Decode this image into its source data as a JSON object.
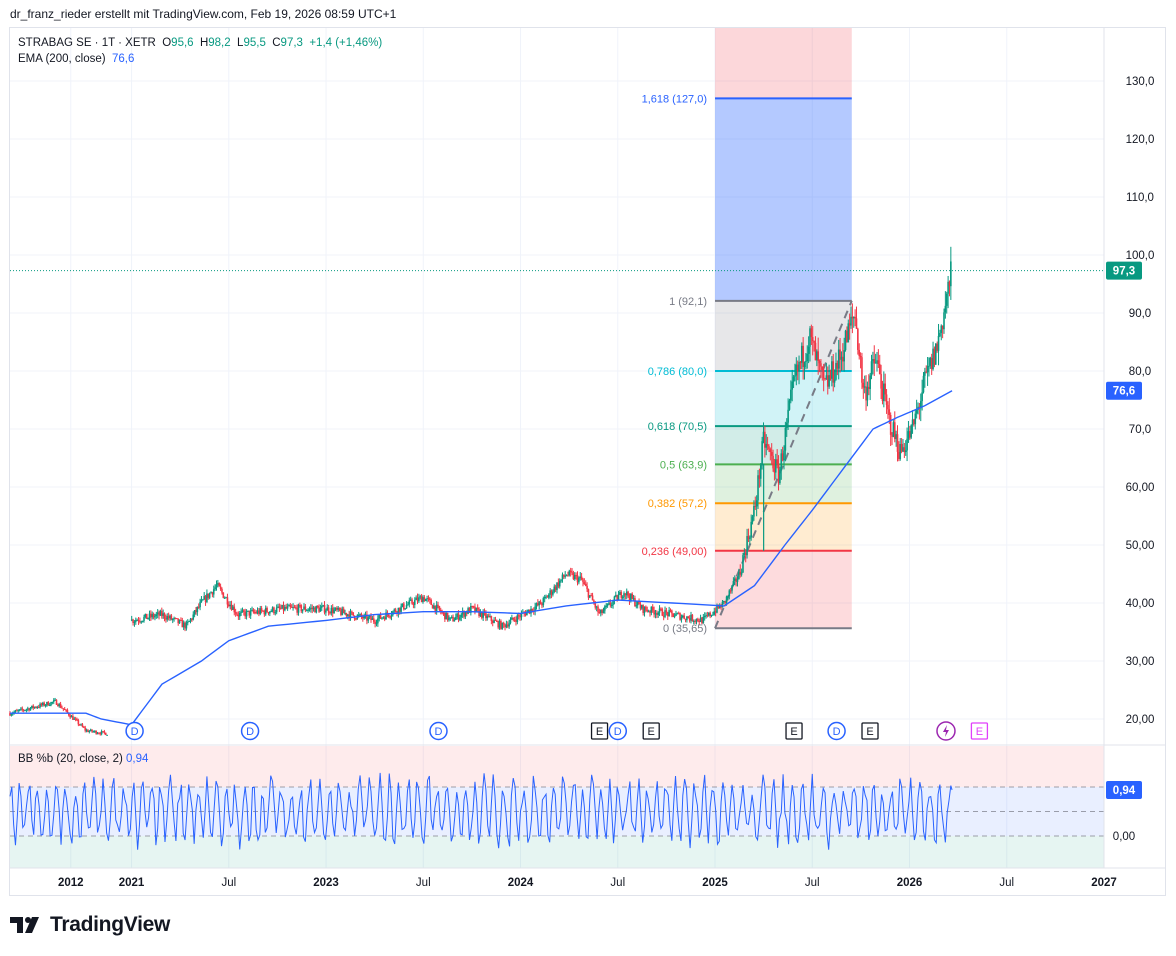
{
  "header": {
    "attribution": "dr_franz_rieder erstellt mit TradingView.com, Feb 19, 2026 08:59 UTC+1"
  },
  "legend": {
    "symbol": "STRABAG SE · 1T · XETR",
    "o_label": "O",
    "o_value": "95,6",
    "h_label": "H",
    "h_value": "98,2",
    "l_label": "L",
    "l_value": "95,5",
    "c_label": "C",
    "c_value": "97,3",
    "change": "+1,4 (+1,46%)",
    "ema_label": "EMA (200, close)",
    "ema_value": "76,6"
  },
  "indicator": {
    "label": "BB %b (20, close, 2)",
    "value": "0,94",
    "axis_label": "0,00"
  },
  "footer": {
    "brand": "TradingView"
  },
  "colors": {
    "up": "#089981",
    "down": "#f23645",
    "ema": "#2962ff",
    "accent": "#2962ff"
  },
  "chart_data": {
    "type": "candlestick",
    "symbol": "STRABAG SE",
    "interval": "1T",
    "exchange": "XETR",
    "price_axis": {
      "range": [
        15,
        140
      ],
      "ticks": [
        {
          "v": 20,
          "label": "20,00"
        },
        {
          "v": 30,
          "label": "30,00"
        },
        {
          "v": 40,
          "label": "40,00"
        },
        {
          "v": 50,
          "label": "50,00"
        },
        {
          "v": 60,
          "label": "60,00"
        },
        {
          "v": 70,
          "label": "70,0"
        },
        {
          "v": 80,
          "label": "80,0"
        },
        {
          "v": 90,
          "label": "90,0"
        },
        {
          "v": 100,
          "label": "100,0"
        },
        {
          "v": 110,
          "label": "110,0"
        },
        {
          "v": 120,
          "label": "120,0"
        },
        {
          "v": 130,
          "label": "130,0"
        }
      ],
      "last_price": {
        "v": 97.3,
        "label": "97,3"
      },
      "ema_badge": {
        "v": 76.6,
        "label": "76,6"
      }
    },
    "time_axis": {
      "ticks": [
        {
          "t": 2.0,
          "label": "2012"
        },
        {
          "t": 4.0,
          "label": "2021"
        },
        {
          "t": 7.2,
          "label": "Jul"
        },
        {
          "t": 10.4,
          "label": "2023"
        },
        {
          "t": 13.6,
          "label": "Jul"
        },
        {
          "t": 16.8,
          "label": "2024"
        },
        {
          "t": 20.0,
          "label": "Jul"
        },
        {
          "t": 23.2,
          "label": "2025"
        },
        {
          "t": 26.4,
          "label": "Jul"
        },
        {
          "t": 29.6,
          "label": "2026"
        },
        {
          "t": 32.8,
          "label": "Jul"
        },
        {
          "t": 36.0,
          "label": "2027"
        }
      ]
    },
    "price_path": [
      [
        0,
        21
      ],
      [
        1.5,
        23
      ],
      [
        2.5,
        18
      ],
      [
        3.2,
        17.5
      ],
      [
        4.0,
        37
      ],
      [
        5.0,
        38
      ],
      [
        5.8,
        36
      ],
      [
        6.3,
        40
      ],
      [
        6.8,
        43
      ],
      [
        7.5,
        38
      ],
      [
        9,
        39
      ],
      [
        10.4,
        39
      ],
      [
        12,
        37
      ],
      [
        13.6,
        41
      ],
      [
        14.5,
        37
      ],
      [
        15.2,
        39
      ],
      [
        16.2,
        36
      ],
      [
        17.5,
        40
      ],
      [
        18.3,
        45
      ],
      [
        18.8,
        44
      ],
      [
        19.4,
        38
      ],
      [
        20.2,
        42
      ],
      [
        20.8,
        39
      ],
      [
        21.8,
        38
      ],
      [
        22.8,
        37
      ],
      [
        23.5,
        40
      ],
      [
        24.0,
        45
      ],
      [
        24.5,
        56
      ],
      [
        24.8,
        68
      ],
      [
        25.3,
        62
      ],
      [
        25.8,
        78
      ],
      [
        26.3,
        86
      ],
      [
        26.8,
        77
      ],
      [
        27.3,
        82
      ],
      [
        27.8,
        90
      ],
      [
        28.1,
        76
      ],
      [
        28.5,
        82
      ],
      [
        28.9,
        72
      ],
      [
        29.3,
        66
      ],
      [
        29.7,
        70
      ],
      [
        30.1,
        78
      ],
      [
        30.5,
        84
      ],
      [
        30.8,
        92
      ],
      [
        31.0,
        97.3
      ]
    ],
    "ema_path": [
      [
        0,
        21
      ],
      [
        2.5,
        21
      ],
      [
        3.0,
        20
      ],
      [
        4.0,
        19
      ],
      [
        5.0,
        26
      ],
      [
        6.3,
        30
      ],
      [
        7.2,
        33.5
      ],
      [
        8.5,
        36
      ],
      [
        10.4,
        37
      ],
      [
        12,
        38
      ],
      [
        13.6,
        38.5
      ],
      [
        15.2,
        38.5
      ],
      [
        16.8,
        38.2
      ],
      [
        18.3,
        39.5
      ],
      [
        20.0,
        40.5
      ],
      [
        21.8,
        40.0
      ],
      [
        23.5,
        39.5
      ],
      [
        24.5,
        43
      ],
      [
        25.5,
        50
      ],
      [
        26.4,
        56
      ],
      [
        27.4,
        63
      ],
      [
        28.4,
        70
      ],
      [
        29.2,
        72
      ],
      [
        30.1,
        74
      ],
      [
        31.0,
        76.6
      ]
    ],
    "fibonacci": {
      "t_start": 23.2,
      "t_end": 27.7,
      "levels": [
        {
          "ratio": "0",
          "price": 35.65,
          "label": "0 (35,65)",
          "color": "#787b86"
        },
        {
          "ratio": "0,236",
          "price": 49.0,
          "label": "0,236 (49,00)",
          "color": "#f23645"
        },
        {
          "ratio": "0,382",
          "price": 57.2,
          "label": "0,382 (57,2)",
          "color": "#ff9800"
        },
        {
          "ratio": "0,5",
          "price": 63.9,
          "label": "0,5 (63,9)",
          "color": "#4caf50"
        },
        {
          "ratio": "0,618",
          "price": 70.5,
          "label": "0,618 (70,5)",
          "color": "#089981"
        },
        {
          "ratio": "0,786",
          "price": 80.0,
          "label": "0,786 (80,0)",
          "color": "#00bcd4"
        },
        {
          "ratio": "1",
          "price": 92.1,
          "label": "1 (92,1)",
          "color": "#787b86"
        },
        {
          "ratio": "1,618",
          "price": 127.0,
          "label": "1,618 (127,0)",
          "color": "#2962ff"
        }
      ],
      "trend_line": [
        [
          23.2,
          35.65
        ],
        [
          27.7,
          92.1
        ]
      ]
    },
    "events": [
      {
        "t": 4.1,
        "type": "D"
      },
      {
        "t": 7.9,
        "type": "D"
      },
      {
        "t": 14.1,
        "type": "D"
      },
      {
        "t": 19.4,
        "type": "E"
      },
      {
        "t": 20.0,
        "type": "D"
      },
      {
        "t": 21.1,
        "type": "E"
      },
      {
        "t": 25.8,
        "type": "E"
      },
      {
        "t": 27.2,
        "type": "D"
      },
      {
        "t": 28.3,
        "type": "E"
      },
      {
        "t": 30.8,
        "type": "lightning"
      },
      {
        "t": 31.9,
        "type": "E"
      }
    ],
    "indicator_bands": {
      "upper": 1.0,
      "mid": 0.5,
      "lower": 0.0,
      "range": [
        -0.65,
        1.45
      ]
    }
  }
}
